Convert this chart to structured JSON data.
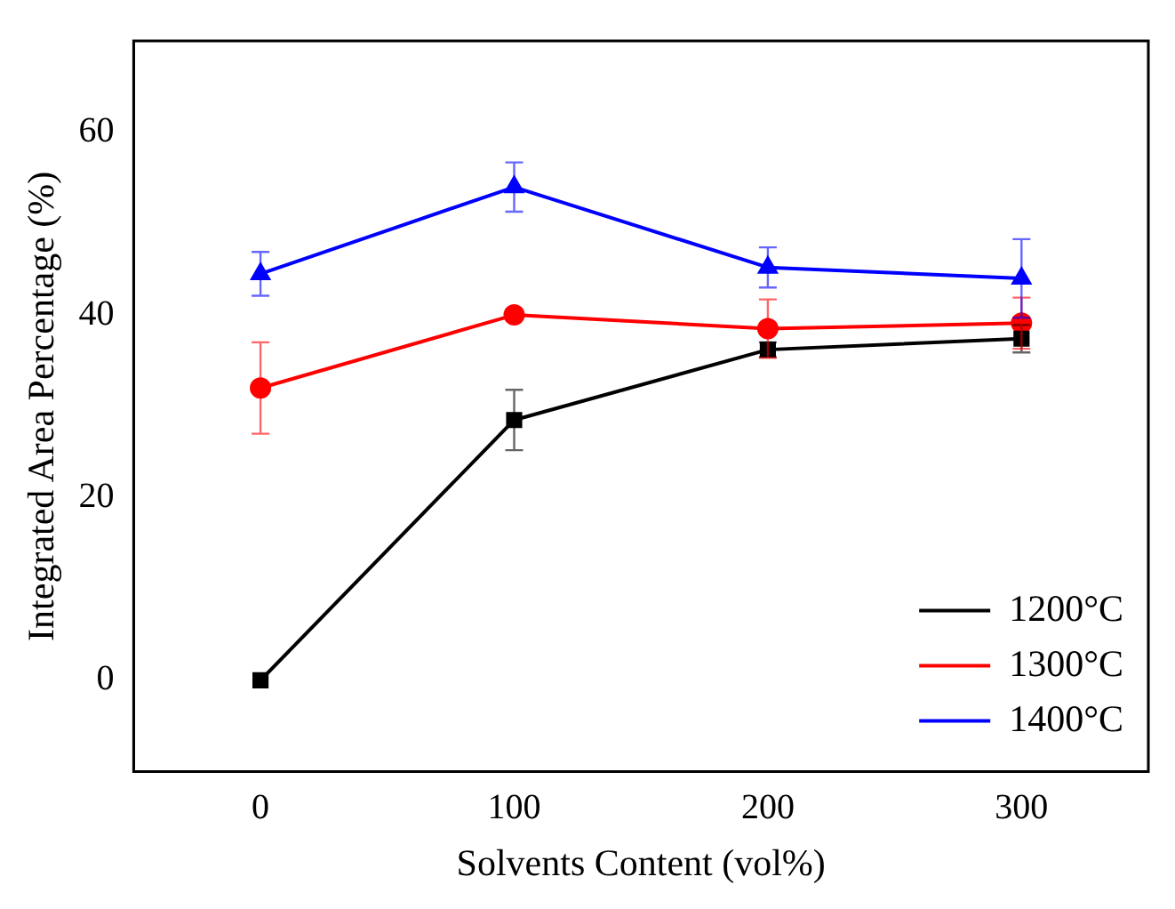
{
  "chart_data": {
    "type": "line",
    "xlabel": "Solvents Content (vol%)",
    "ylabel": "Integrated Area Percentage (%)",
    "x": [
      0,
      100,
      200,
      300
    ],
    "xlim": [
      -50,
      350
    ],
    "xticks": [
      0,
      100,
      200,
      300
    ],
    "ylim": [
      -10,
      70
    ],
    "yticks": [
      0,
      20,
      40,
      60
    ],
    "grid": false,
    "legend": "bottom right",
    "line_style": "solid",
    "series": [
      {
        "name": "1200°C",
        "color": "#000000",
        "marker": "square",
        "values": [
          0,
          28.5,
          36.2,
          37.4
        ],
        "errors": [
          null,
          3.3,
          0.8,
          1.5
        ]
      },
      {
        "name": "1300°C",
        "color": "#ff0000",
        "marker": "circle",
        "values": [
          32,
          40,
          38.5,
          39.1
        ],
        "errors": [
          5,
          null,
          3.2,
          2.8
        ]
      },
      {
        "name": "1400°C",
        "color": "#0000ff",
        "marker": "triangle",
        "values": [
          44.5,
          54,
          45.2,
          44
        ],
        "errors": [
          2.4,
          2.7,
          2.2,
          4.3
        ]
      }
    ]
  }
}
